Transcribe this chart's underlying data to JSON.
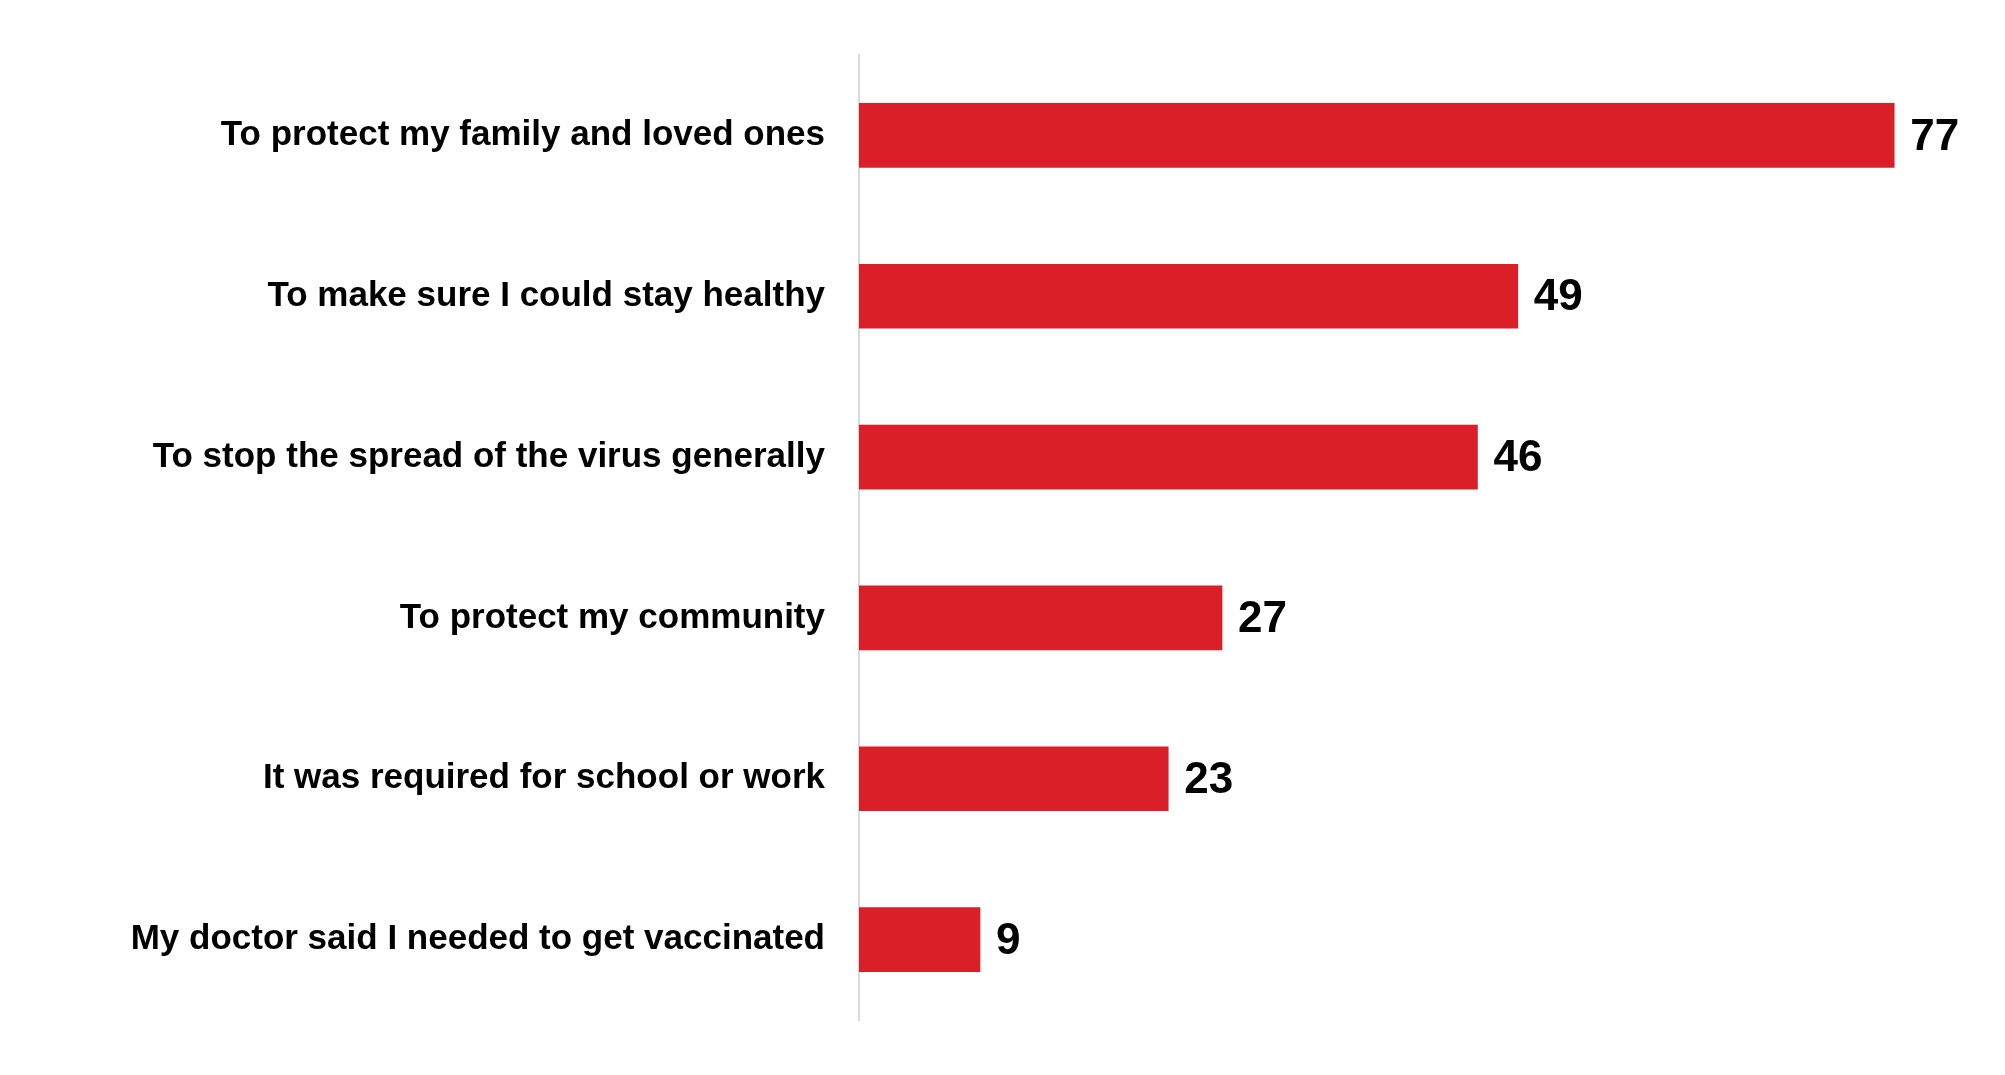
{
  "chart_data": {
    "type": "bar",
    "orientation": "horizontal",
    "categories": [
      "To protect my family and loved ones",
      "To make sure I could stay healthy",
      "To stop the spread of the virus generally",
      "To protect my community",
      "It was required for school or work",
      "My doctor said I needed to get vaccinated"
    ],
    "values": [
      77,
      49,
      46,
      27,
      23,
      9
    ],
    "color": "#da1f28",
    "data_labels": true
  }
}
